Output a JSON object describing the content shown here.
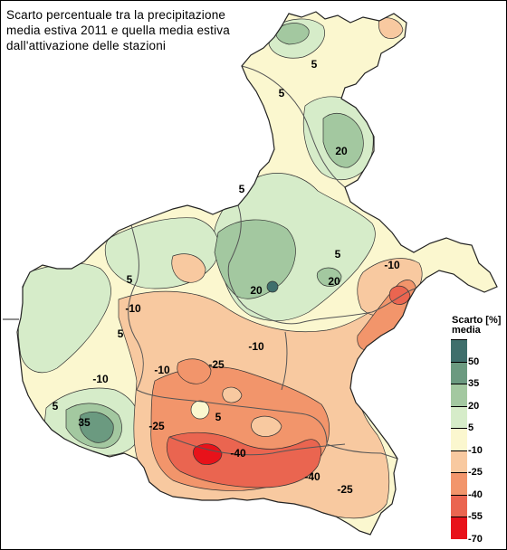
{
  "title": {
    "line1": "Scarto percentuale tra la precipitazione",
    "line2": "media estiva 2011 e quella media estiva",
    "line3": "dall'attivazione delle stazioni"
  },
  "legend": {
    "title_line1": "Scarto [%]",
    "title_line2": "media",
    "classes": [
      {
        "label": "50",
        "color": "#3f6f6c"
      },
      {
        "label": "35",
        "color": "#6b9a80"
      },
      {
        "label": "20",
        "color": "#a3c8a0"
      },
      {
        "label": "5",
        "color": "#d6ecc9"
      },
      {
        "label": "-10",
        "color": "#fbf7cf"
      },
      {
        "label": "-25",
        "color": "#f8c9a0"
      },
      {
        "label": "-40",
        "color": "#f2956b"
      },
      {
        "label": "-55",
        "color": "#ea6550"
      },
      {
        "label": "-70",
        "color": "#e8121a"
      }
    ]
  },
  "contour_labels": [
    {
      "text": "5"
    },
    {
      "text": "5"
    },
    {
      "text": "20"
    },
    {
      "text": "5"
    },
    {
      "text": "5"
    },
    {
      "text": "20"
    },
    {
      "text": "20"
    },
    {
      "text": "-10"
    },
    {
      "text": "5"
    },
    {
      "text": "-10"
    },
    {
      "text": "5"
    },
    {
      "text": "-10"
    },
    {
      "text": "-10"
    },
    {
      "text": "5"
    },
    {
      "text": "-10"
    },
    {
      "text": "-25"
    },
    {
      "text": "35"
    },
    {
      "text": "-25"
    },
    {
      "text": "-40"
    },
    {
      "text": "-25"
    },
    {
      "text": "-40"
    },
    {
      "text": "5"
    }
  ]
}
